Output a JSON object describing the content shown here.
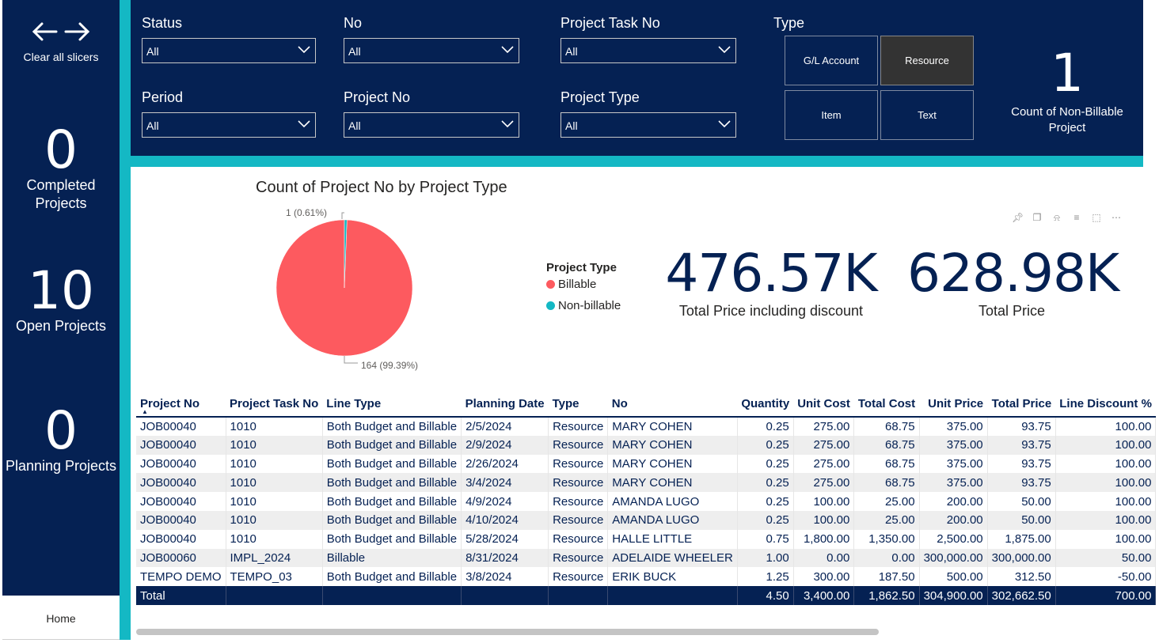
{
  "sidebar": {
    "clear_label": "Clear all slicers",
    "completed": {
      "value": "0",
      "label_line1": "Completed",
      "label_line2": "Projects"
    },
    "open": {
      "value": "10",
      "label": "Open Projects"
    },
    "planning": {
      "value": "0",
      "label": "Planning Projects"
    },
    "home_label": "Home"
  },
  "slicers": {
    "status": {
      "title": "Status",
      "value": "All"
    },
    "no": {
      "title": "No",
      "value": "All"
    },
    "project_task_no": {
      "title": "Project Task No",
      "value": "All"
    },
    "period": {
      "title": "Period",
      "value": "All"
    },
    "project_no": {
      "title": "Project No",
      "value": "All"
    },
    "project_type": {
      "title": "Project Type",
      "value": "All"
    }
  },
  "type_slicer": {
    "title": "Type",
    "buttons": [
      "G/L Account",
      "Resource",
      "Item",
      "Text"
    ],
    "selected": "Resource"
  },
  "non_billable": {
    "value": "1",
    "label_line1": "Count of Non-Billable",
    "label_line2": "Project"
  },
  "chart_data": {
    "type": "pie",
    "title": "Count of Project No by Project Type",
    "legend_title": "Project Type",
    "legend_position": "right",
    "categories": [
      "Billable",
      "Non-billable"
    ],
    "values": [
      164,
      1
    ],
    "data_labels": [
      "164 (99.39%)",
      "1 (0.61%)"
    ],
    "colors": [
      "#fd5a5f",
      "#14b8c4"
    ]
  },
  "kpis": {
    "total_price_discount": {
      "value": "476.57K",
      "label": "Total Price including discount"
    },
    "total_price": {
      "value": "628.98K",
      "label": "Total Price"
    }
  },
  "visual_icons": [
    "pin-icon",
    "copy-icon",
    "bell-icon",
    "filter-icon",
    "focus-icon",
    "more-icon"
  ],
  "table": {
    "columns": [
      "Project No",
      "Project Task No",
      "Line Type",
      "Planning Date",
      "Type",
      "No",
      "Quantity",
      "Unit Cost",
      "Total Cost",
      "Unit Price",
      "Total Price",
      "Line Discount %"
    ],
    "rows": [
      [
        "JOB00040",
        "1010",
        "Both Budget and Billable",
        "2/5/2024",
        "Resource",
        "MARY COHEN",
        "0.25",
        "275.00",
        "68.75",
        "375.00",
        "93.75",
        "100.00"
      ],
      [
        "JOB00040",
        "1010",
        "Both Budget and Billable",
        "2/9/2024",
        "Resource",
        "MARY COHEN",
        "0.25",
        "275.00",
        "68.75",
        "375.00",
        "93.75",
        "100.00"
      ],
      [
        "JOB00040",
        "1010",
        "Both Budget and Billable",
        "2/26/2024",
        "Resource",
        "MARY COHEN",
        "0.25",
        "275.00",
        "68.75",
        "375.00",
        "93.75",
        "100.00"
      ],
      [
        "JOB00040",
        "1010",
        "Both Budget and Billable",
        "3/4/2024",
        "Resource",
        "MARY COHEN",
        "0.25",
        "275.00",
        "68.75",
        "375.00",
        "93.75",
        "100.00"
      ],
      [
        "JOB00040",
        "1010",
        "Both Budget and Billable",
        "4/9/2024",
        "Resource",
        "AMANDA LUGO",
        "0.25",
        "100.00",
        "25.00",
        "200.00",
        "50.00",
        "100.00"
      ],
      [
        "JOB00040",
        "1010",
        "Both Budget and Billable",
        "4/10/2024",
        "Resource",
        "AMANDA LUGO",
        "0.25",
        "100.00",
        "25.00",
        "200.00",
        "50.00",
        "100.00"
      ],
      [
        "JOB00040",
        "1010",
        "Both Budget and Billable",
        "5/28/2024",
        "Resource",
        "HALLE LITTLE",
        "0.75",
        "1,800.00",
        "1,350.00",
        "2,500.00",
        "1,875.00",
        "100.00"
      ],
      [
        "JOB00060",
        "IMPL_2024",
        "Billable",
        "8/31/2024",
        "Resource",
        "ADELAIDE WHEELER",
        "1.00",
        "0.00",
        "0.00",
        "300,000.00",
        "300,000.00",
        "50.00"
      ],
      [
        "TEMPO DEMO",
        "TEMPO_03",
        "Both Budget and Billable",
        "3/8/2024",
        "Resource",
        "ERIK BUCK",
        "1.25",
        "300.00",
        "187.50",
        "500.00",
        "312.50",
        "-50.00"
      ]
    ],
    "total": [
      "Total",
      "",
      "",
      "",
      "",
      "",
      "4.50",
      "3,400.00",
      "1,862.50",
      "304,900.00",
      "302,662.50",
      "700.00"
    ]
  }
}
